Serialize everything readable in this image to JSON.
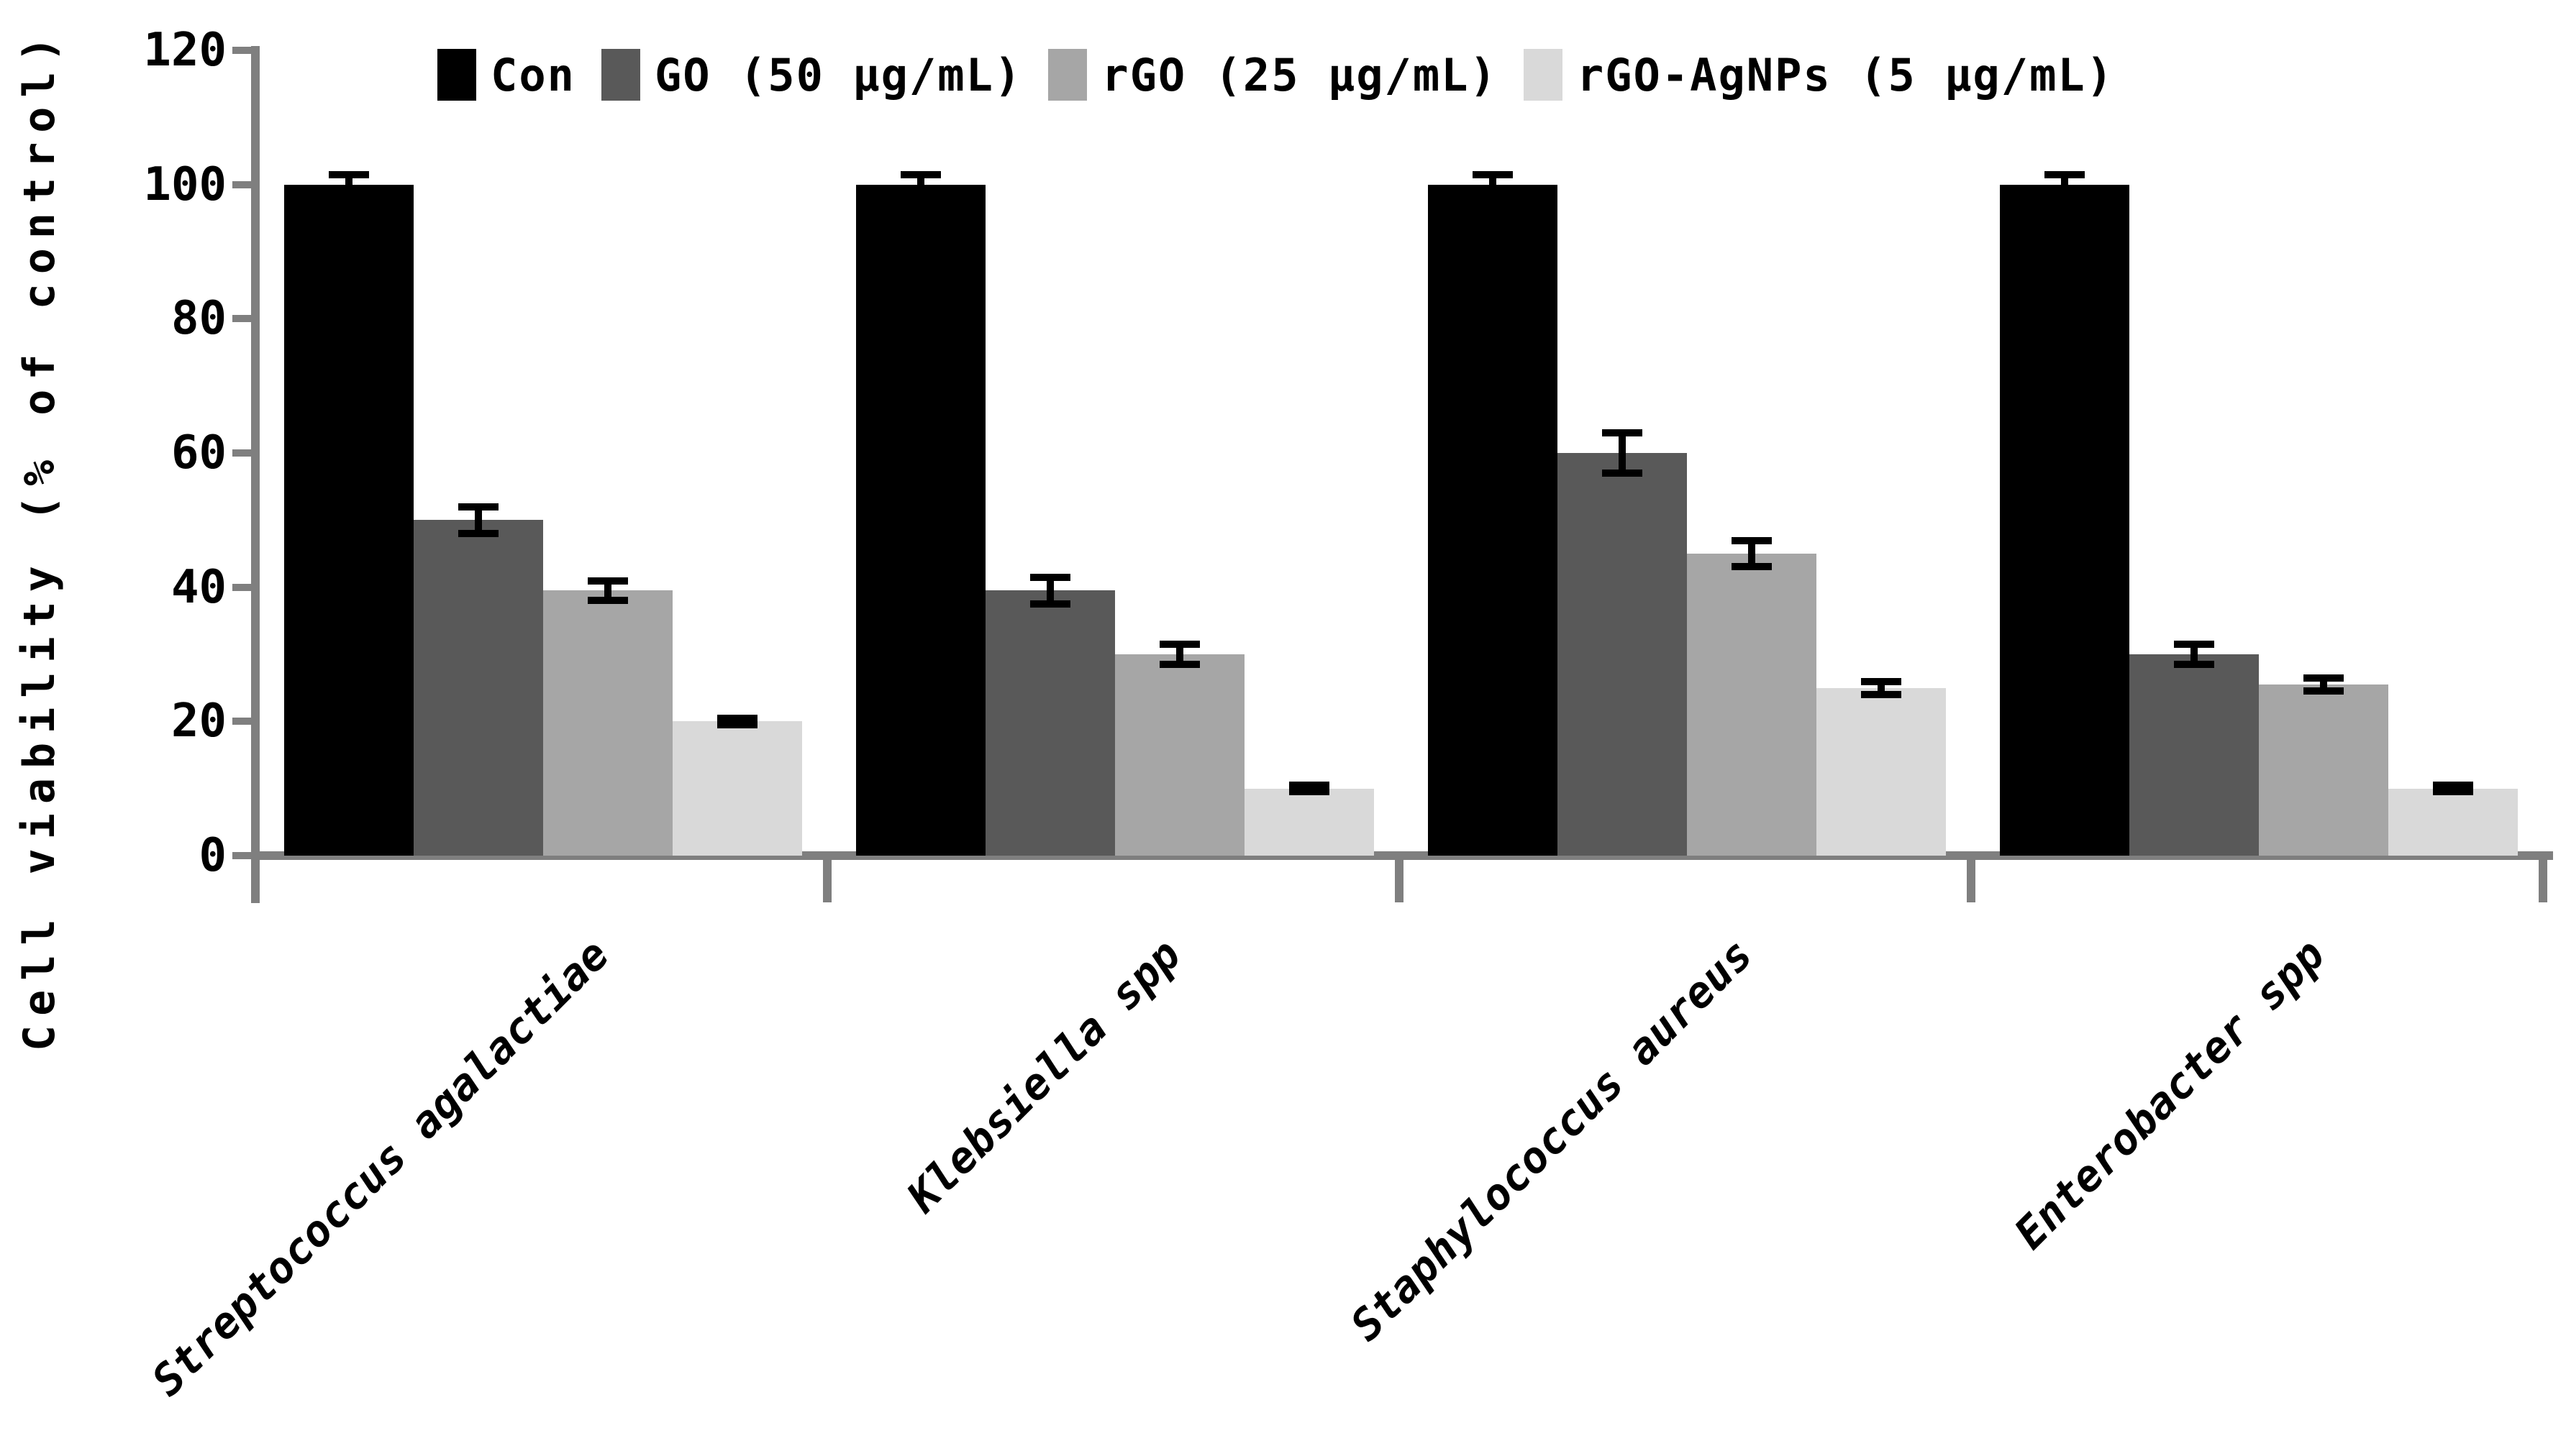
{
  "chart_data": {
    "type": "bar",
    "title": "",
    "ylabel": "Cell viability (% of control)",
    "xlabel": "",
    "categories": [
      "Streptococcus agalactiae",
      "Klebsiella spp",
      "Staphylococcus aureus",
      "Enterobacter spp"
    ],
    "series": [
      {
        "name": "Con",
        "color": "#000000",
        "values": [
          100,
          100,
          100,
          100
        ],
        "errors": [
          2,
          2,
          2,
          2
        ]
      },
      {
        "name": "GO (50 µg/mL)",
        "color": "#595959",
        "values": [
          50,
          39.5,
          60,
          30
        ],
        "errors": [
          2.5,
          2.5,
          3.5,
          2
        ]
      },
      {
        "name": "rGO (25 µg/mL)",
        "color": "#a6a6a6",
        "values": [
          39.5,
          30,
          45,
          25.5
        ],
        "errors": [
          2,
          2,
          2.5,
          1.5
        ]
      },
      {
        "name": "rGO-AgNPs (5 µg/mL)",
        "color": "#d9d9d9",
        "values": [
          20,
          10,
          25,
          10
        ],
        "errors": [
          1,
          1,
          1.5,
          1
        ]
      }
    ],
    "yticks": [
      0,
      20,
      40,
      60,
      80,
      100,
      120
    ],
    "ylim": [
      0,
      120
    ],
    "grid": false,
    "legend_position": "top",
    "error_bars": true,
    "axis_color": "#7f7f7f"
  }
}
